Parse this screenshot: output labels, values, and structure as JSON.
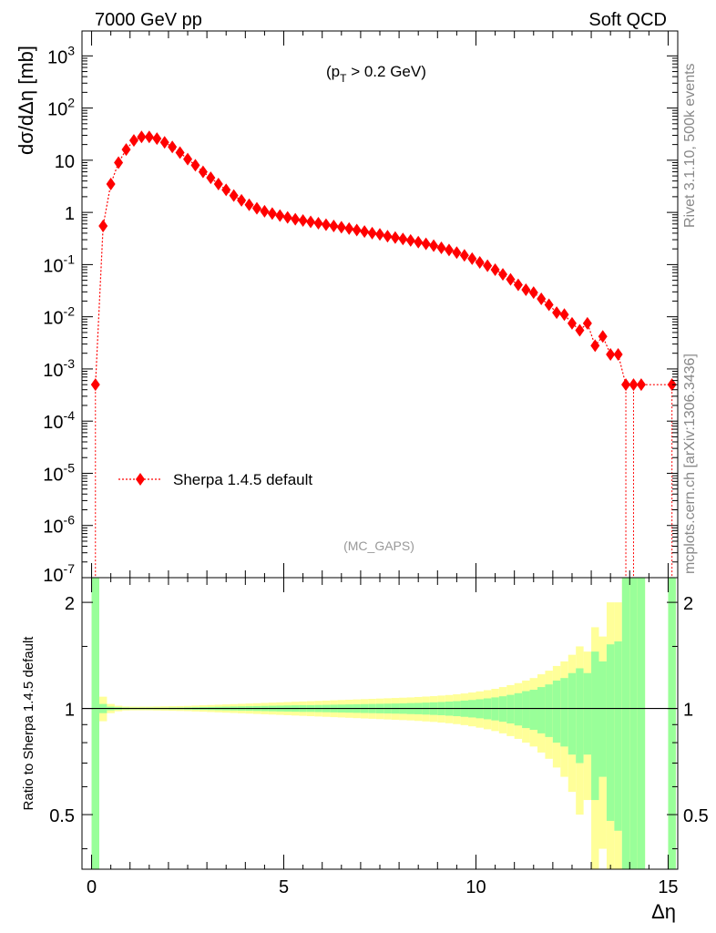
{
  "header": {
    "left": "7000 GeV pp",
    "right": "Soft QCD"
  },
  "side": {
    "top": "Rivet 3.1.10,  500k events",
    "bottom": "mcplots.cern.ch [arXiv:1306.3436]"
  },
  "annotation": {
    "cut_prefix": "(p",
    "cut_sub": "T",
    "cut_suffix": " > 0.2 GeV)",
    "analysis": "(MC_GAPS)"
  },
  "colors": {
    "data": "#ff0000",
    "band_inner": "#99ff99",
    "band_outer": "#ffff99"
  },
  "chart_data": [
    {
      "type": "scatter",
      "title": "",
      "ylabel": "dσ/dΔη [mb]",
      "xlabel": "",
      "yscale": "log",
      "xlim": [
        -0.25,
        15.25
      ],
      "ylim": [
        1e-07,
        3000
      ],
      "ytick_labels": [
        "10^3",
        "10^2",
        "10",
        "1",
        "10^-1",
        "10^-2",
        "10^-3",
        "10^-4",
        "10^-5",
        "10^-6",
        "10^-7"
      ],
      "legend": {
        "entries": [
          "Sherpa 1.4.5 default"
        ],
        "placement": "lower-left"
      },
      "series": [
        {
          "name": "Sherpa 1.4.5 default",
          "marker": "diamond",
          "line": "dotted",
          "x": [
            0.1,
            0.3,
            0.5,
            0.7,
            0.9,
            1.1,
            1.3,
            1.5,
            1.7,
            1.9,
            2.1,
            2.3,
            2.5,
            2.7,
            2.9,
            3.1,
            3.3,
            3.5,
            3.7,
            3.9,
            4.1,
            4.3,
            4.5,
            4.7,
            4.9,
            5.1,
            5.3,
            5.5,
            5.7,
            5.9,
            6.1,
            6.3,
            6.5,
            6.7,
            6.9,
            7.1,
            7.3,
            7.5,
            7.7,
            7.9,
            8.1,
            8.3,
            8.5,
            8.7,
            8.9,
            9.1,
            9.3,
            9.5,
            9.7,
            9.9,
            10.1,
            10.3,
            10.5,
            10.7,
            10.9,
            11.1,
            11.3,
            11.5,
            11.7,
            11.9,
            12.1,
            12.3,
            12.5,
            12.7,
            12.9,
            13.1,
            13.3,
            13.5,
            13.7,
            13.9,
            14.1,
            14.3,
            15.1
          ],
          "values": [
            0.0005,
            0.55,
            3.5,
            9,
            16,
            24,
            28,
            28,
            26,
            22,
            18,
            14,
            10.5,
            8,
            6,
            4.6,
            3.5,
            2.7,
            2.1,
            1.7,
            1.4,
            1.2,
            1.05,
            0.95,
            0.87,
            0.8,
            0.74,
            0.7,
            0.66,
            0.62,
            0.58,
            0.55,
            0.52,
            0.49,
            0.46,
            0.43,
            0.4,
            0.38,
            0.35,
            0.33,
            0.31,
            0.29,
            0.27,
            0.25,
            0.23,
            0.21,
            0.19,
            0.17,
            0.15,
            0.13,
            0.11,
            0.095,
            0.08,
            0.065,
            0.052,
            0.041,
            0.033,
            0.029,
            0.022,
            0.017,
            0.012,
            0.011,
            0.0075,
            0.0055,
            0.0075,
            0.0028,
            0.0042,
            0.0019,
            0.0019,
            0.0005,
            0.0005,
            0.0005,
            0.0005
          ]
        }
      ]
    },
    {
      "type": "area",
      "title": "",
      "ylabel": "Ratio to Sherpa 1.4.5 default",
      "xlabel": "Δη",
      "xlim": [
        -0.25,
        15.25
      ],
      "ylim": [
        0.35,
        2.35
      ],
      "yscale": "log",
      "x_ticks": [
        0,
        5,
        10,
        15
      ],
      "y_ticks": [
        0.5,
        1,
        2
      ],
      "reference_line": 1,
      "x_bins": [
        0.1,
        0.3,
        0.5,
        0.7,
        0.9,
        1.1,
        1.3,
        1.5,
        1.7,
        1.9,
        2.1,
        2.3,
        2.5,
        2.7,
        2.9,
        3.1,
        3.3,
        3.5,
        3.7,
        3.9,
        4.1,
        4.3,
        4.5,
        4.7,
        4.9,
        5.1,
        5.3,
        5.5,
        5.7,
        5.9,
        6.1,
        6.3,
        6.5,
        6.7,
        6.9,
        7.1,
        7.3,
        7.5,
        7.7,
        7.9,
        8.1,
        8.3,
        8.5,
        8.7,
        8.9,
        9.1,
        9.3,
        9.5,
        9.7,
        9.9,
        10.1,
        10.3,
        10.5,
        10.7,
        10.9,
        11.1,
        11.3,
        11.5,
        11.7,
        11.9,
        12.1,
        12.3,
        12.5,
        12.7,
        12.9,
        13.1,
        13.3,
        13.5,
        13.7,
        13.9,
        14.1,
        14.3,
        15.1
      ],
      "band_inner_rel": [
        2.0,
        0.03,
        0.012,
        0.008,
        0.006,
        0.005,
        0.005,
        0.005,
        0.005,
        0.005,
        0.006,
        0.006,
        0.007,
        0.008,
        0.009,
        0.01,
        0.011,
        0.012,
        0.013,
        0.014,
        0.015,
        0.016,
        0.017,
        0.018,
        0.019,
        0.02,
        0.021,
        0.022,
        0.022,
        0.023,
        0.024,
        0.025,
        0.026,
        0.027,
        0.028,
        0.029,
        0.03,
        0.031,
        0.032,
        0.033,
        0.034,
        0.036,
        0.037,
        0.039,
        0.041,
        0.043,
        0.046,
        0.049,
        0.053,
        0.057,
        0.062,
        0.068,
        0.075,
        0.083,
        0.093,
        0.105,
        0.12,
        0.13,
        0.15,
        0.17,
        0.2,
        0.22,
        0.26,
        0.3,
        0.26,
        0.45,
        0.36,
        0.52,
        0.55,
        2.0,
        2.0,
        2.0,
        2.0
      ],
      "band_outer_rel": [
        2.0,
        0.08,
        0.03,
        0.018,
        0.013,
        0.012,
        0.012,
        0.012,
        0.013,
        0.014,
        0.015,
        0.016,
        0.017,
        0.019,
        0.021,
        0.023,
        0.025,
        0.027,
        0.029,
        0.031,
        0.033,
        0.035,
        0.037,
        0.039,
        0.041,
        0.043,
        0.045,
        0.047,
        0.049,
        0.051,
        0.053,
        0.055,
        0.057,
        0.059,
        0.061,
        0.063,
        0.065,
        0.067,
        0.069,
        0.071,
        0.073,
        0.075,
        0.078,
        0.081,
        0.084,
        0.088,
        0.092,
        0.097,
        0.103,
        0.11,
        0.118,
        0.127,
        0.137,
        0.15,
        0.165,
        0.18,
        0.2,
        0.22,
        0.25,
        0.28,
        0.32,
        0.36,
        0.42,
        0.5,
        0.45,
        0.7,
        0.6,
        1.0,
        1.0,
        2.0,
        2.0,
        2.0,
        2.0
      ]
    }
  ]
}
